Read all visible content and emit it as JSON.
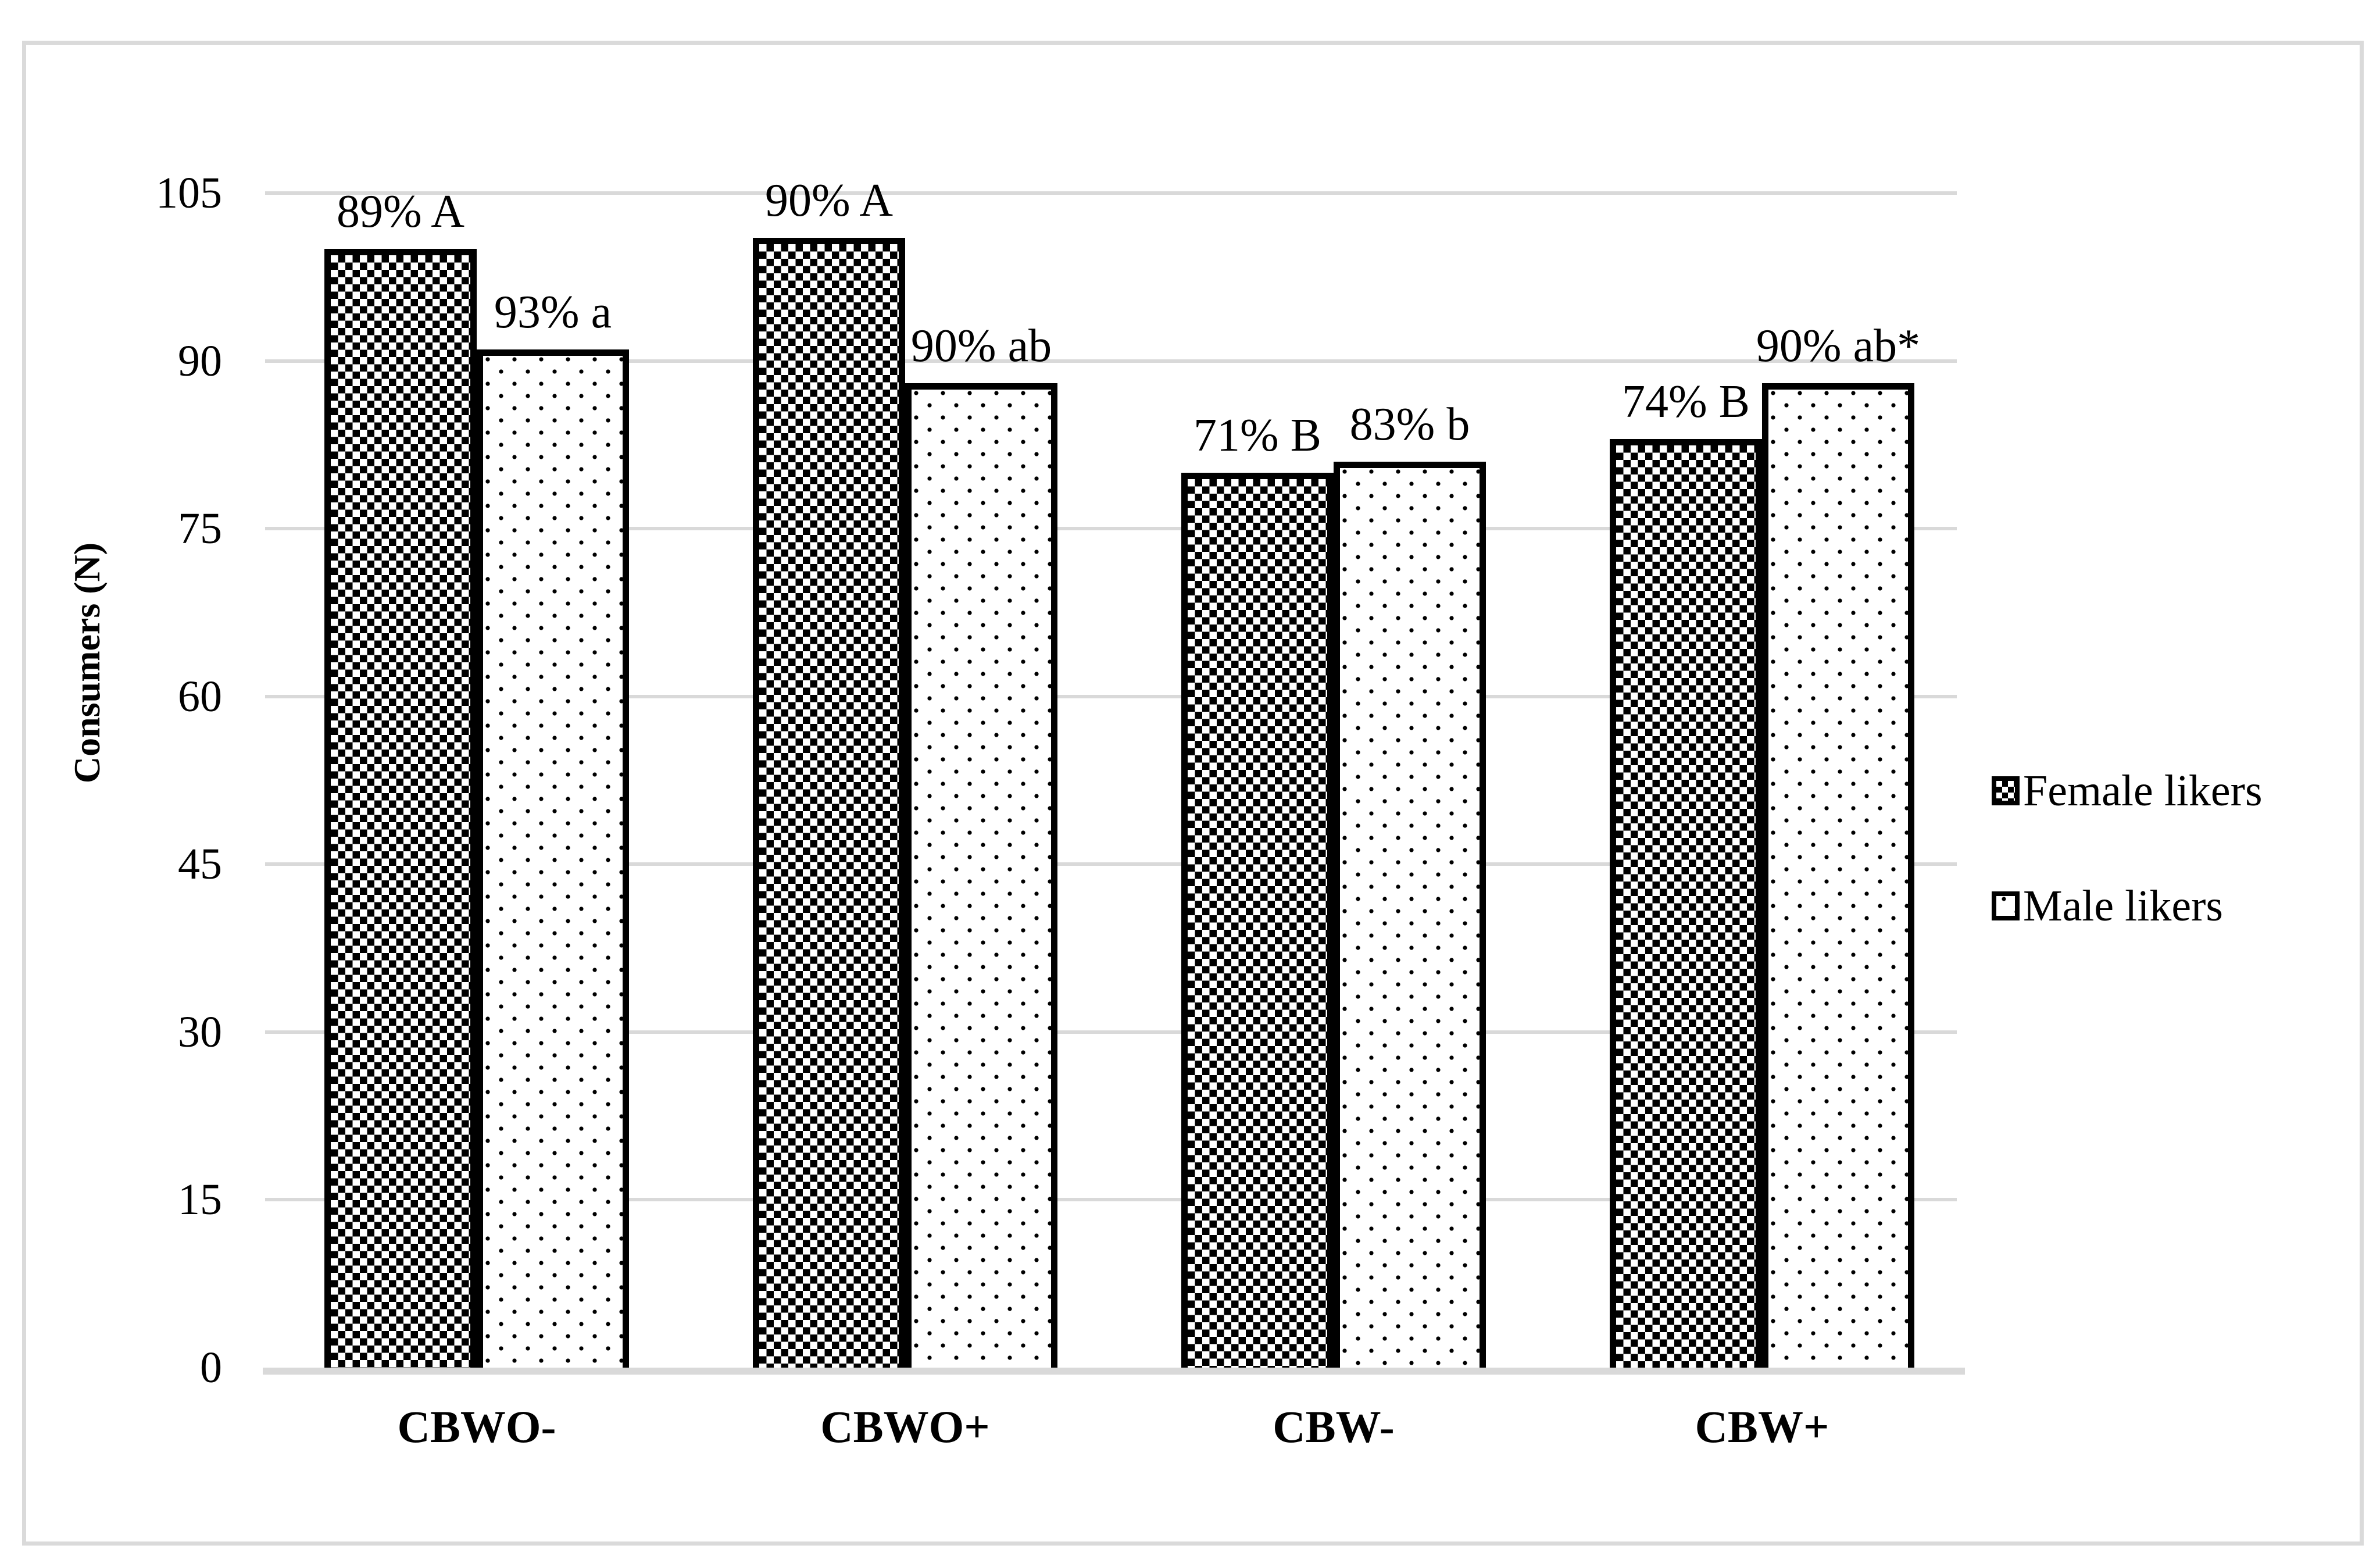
{
  "figure": {
    "background_color": "#ffffff",
    "frame_border_color": "#dadada"
  },
  "chart_data": {
    "type": "bar",
    "title": "",
    "categories": [
      "CBWO-",
      "CBWO+",
      "CBW-",
      "CBW+"
    ],
    "series": [
      {
        "name": "Female likers",
        "values": [
          100,
          101,
          80,
          83
        ],
        "labels": [
          "89% A",
          "90% A",
          "71% B",
          "74% B"
        ],
        "pattern": "dense-black-checker"
      },
      {
        "name": "Male likers",
        "values": [
          91,
          88,
          81,
          88
        ],
        "labels": [
          "93% a",
          "90% ab",
          "83% b",
          "90% ab*"
        ],
        "pattern": "sparse-black-dots"
      }
    ],
    "xlabel": "",
    "ylabel": "Consumers (N)",
    "ylim": [
      0,
      105
    ],
    "ytick_step": 15,
    "yticks": [
      0,
      15,
      30,
      45,
      60,
      75,
      90,
      105
    ],
    "grid": true,
    "gridline_color": "#d9d9d9",
    "axis_line_color": "#d9d9d9",
    "bar_border_color": "#000000",
    "text_color": "#000000",
    "legend_position": "right",
    "legend": [
      "Female likers",
      "Male likers"
    ]
  }
}
